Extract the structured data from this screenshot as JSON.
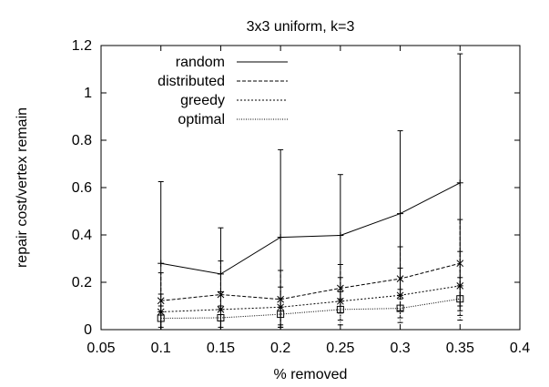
{
  "chart_data": {
    "type": "line",
    "title": "3x3 uniform, k=3",
    "xlabel": "% removed",
    "ylabel": "repair cost/vertex remain",
    "xlim": [
      0.05,
      0.4
    ],
    "ylim": [
      0,
      1.2
    ],
    "xticks": [
      0.05,
      0.1,
      0.15,
      0.2,
      0.25,
      0.3,
      0.35,
      0.4
    ],
    "yticks": [
      0,
      0.2,
      0.4,
      0.6,
      0.8,
      1,
      1.2
    ],
    "grid": false,
    "legend_position": "top-left",
    "x": [
      0.1,
      0.15,
      0.2,
      0.25,
      0.3,
      0.35
    ],
    "series": [
      {
        "name": "random",
        "line_style": "solid",
        "marker": "plus",
        "values": [
          0.28,
          0.235,
          0.39,
          0.398,
          0.49,
          0.62
        ],
        "error_low": [
          0.0,
          0.0,
          0.0,
          0.13,
          0.13,
          0.08
        ],
        "error_high": [
          0.625,
          0.43,
          0.76,
          0.655,
          0.84,
          1.165
        ]
      },
      {
        "name": "distributed",
        "line_style": "dashed",
        "marker": "x",
        "values": [
          0.122,
          0.148,
          0.128,
          0.175,
          0.215,
          0.28
        ],
        "error_low": [
          0.0,
          0.0,
          0.01,
          0.07,
          0.08,
          0.1
        ],
        "error_high": [
          0.24,
          0.29,
          0.25,
          0.275,
          0.35,
          0.465
        ]
      },
      {
        "name": "greedy",
        "line_style": "dotted",
        "marker": "asterisk",
        "values": [
          0.075,
          0.085,
          0.095,
          0.12,
          0.145,
          0.185
        ],
        "error_low": [
          0.01,
          0.01,
          0.02,
          0.04,
          0.05,
          0.06
        ],
        "error_high": [
          0.15,
          0.16,
          0.18,
          0.22,
          0.26,
          0.33
        ]
      },
      {
        "name": "optimal",
        "line_style": "fine-dotted",
        "marker": "square",
        "values": [
          0.048,
          0.05,
          0.065,
          0.085,
          0.09,
          0.13
        ],
        "error_low": [
          0.0,
          0.0,
          0.01,
          0.02,
          0.03,
          0.04
        ],
        "error_high": [
          0.1,
          0.1,
          0.13,
          0.16,
          0.17,
          0.22
        ]
      }
    ]
  }
}
